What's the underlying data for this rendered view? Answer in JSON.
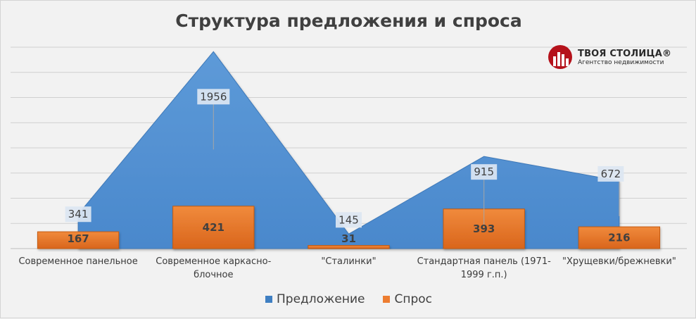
{
  "chart_data": {
    "type": "area",
    "title": "Структура предложения и спроса",
    "categories": [
      "Современное панельное",
      "Современное каркасно-блочное",
      "\"Сталинки\"",
      "Стандартная панель (1971-1999 г.п.)",
      "\"Хрущевки/брежневки\""
    ],
    "series": [
      {
        "name": "Предложение",
        "type": "area",
        "color": "#5b9bd5",
        "values": [
          341,
          1956,
          145,
          915,
          672
        ]
      },
      {
        "name": "Спрос",
        "type": "bar",
        "color": "#ed7d31",
        "values": [
          167,
          421,
          31,
          393,
          216
        ]
      }
    ],
    "ylim": [
      0,
      2000
    ],
    "grid": true,
    "legend_position": "bottom"
  },
  "logo": {
    "name": "ТВОЯ СТОЛИЦА®",
    "subtitle": "Агентство недвижимости",
    "color": "#b5121b"
  }
}
